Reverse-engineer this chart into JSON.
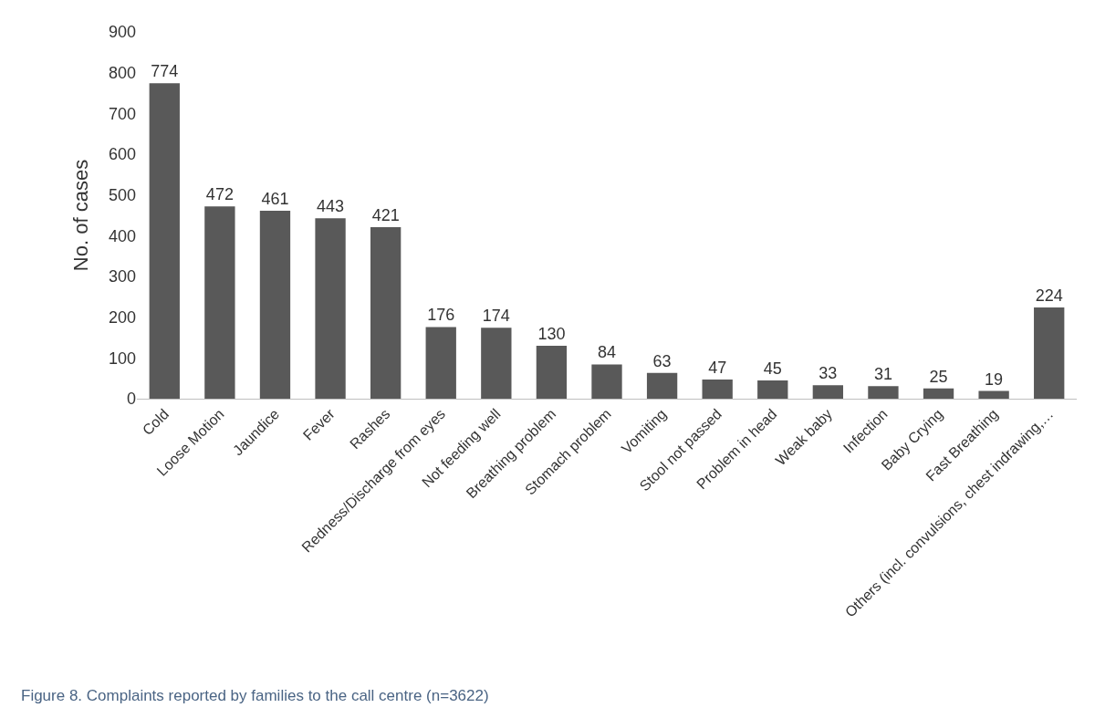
{
  "chart_data": {
    "type": "bar",
    "ylabel": "No. of cases",
    "categories": [
      "Cold",
      "Loose Motion",
      "Jaundice",
      "Fever",
      "Rashes",
      "Redness/Discharge from eyes",
      "Not feeding well",
      "Breathing problem",
      "Stomach problem",
      "Vomiting",
      "Stool not passed",
      "Problem in head",
      "Weak baby",
      "Infection",
      "Baby Crying",
      "Fast Breathing",
      "Others (incl. convulsions, chest indrawing,…"
    ],
    "values": [
      774,
      472,
      461,
      443,
      421,
      176,
      174,
      130,
      84,
      63,
      47,
      45,
      33,
      31,
      25,
      19,
      224
    ],
    "color": "#595959",
    "ylim": [
      0,
      900
    ],
    "yticks": [
      0,
      100,
      200,
      300,
      400,
      500,
      600,
      700,
      800,
      900
    ],
    "grid": false,
    "data_labels": true,
    "annotations": [
      "Figure 8. Complaints reported by families to the call centre (n=3622)"
    ]
  }
}
